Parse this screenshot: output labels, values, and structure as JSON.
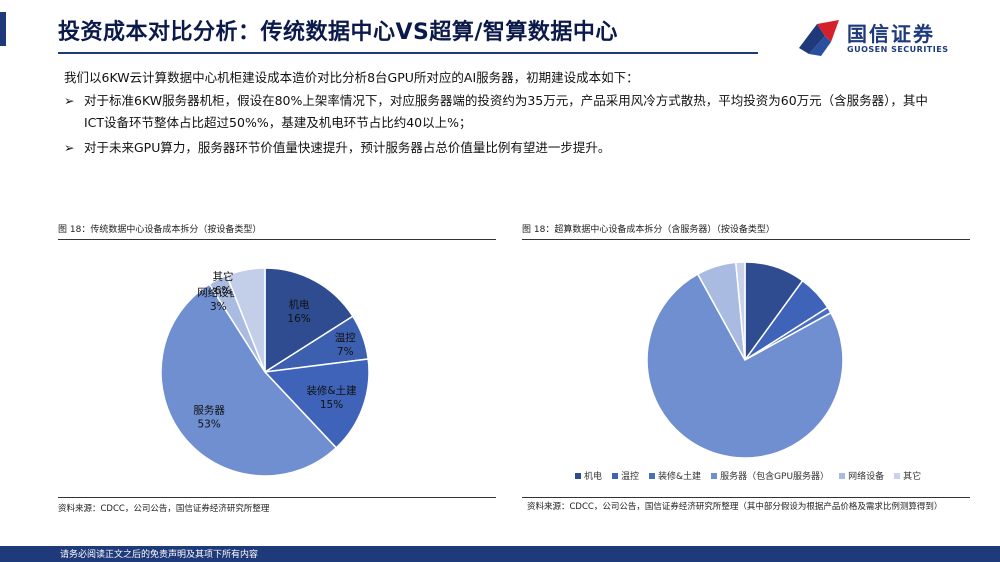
{
  "header": {
    "title": "投资成本对比分析：传统数据中心VS超算/智算数据中心",
    "logo_cn": "国信证券",
    "logo_en": "GUOSEN SECURITIES"
  },
  "intro": "我们以6KW云计算数据中心机柜建设成本造价对比分析8台GPU所对应的AI服务器，初期建设成本如下：",
  "bullets": [
    {
      "arrow": "➢",
      "text": "对于标准6KW服务器机柜，假设在80%上架率情况下，对应服务器端的投资约为35万元，产品采用风冷方式散热，平均投资为60万元（含服务器），其中ICT设备环节整体占比超过50%%，基建及机电环节占比约40以上%；"
    },
    {
      "arrow": "➢",
      "text": "对于未来GPU算力，服务器环节价值量快速提升，预计服务器占总价值量比例有望进一步提升。"
    }
  ],
  "chart_data": [
    {
      "type": "pie",
      "title": "图 18：传统数据中心设备成本拆分（按设备类型）",
      "source": "资料来源：CDCC，公司公告，国信证券经济研究所整理",
      "slices": [
        {
          "name": "机电",
          "value": 16,
          "label": "16%",
          "color": "#2e4c8f"
        },
        {
          "name": "温控",
          "value": 7,
          "label": "7%",
          "color": "#3d5fb0"
        },
        {
          "name": "装修&土建",
          "value": 15,
          "label": "15%",
          "color": "#3e63b8"
        },
        {
          "name": "服务器",
          "value": 53,
          "label": "53%",
          "color": "#6f8fd0"
        },
        {
          "name": "网络设备",
          "value": 3,
          "label": "3%",
          "color": "#a9bbe0"
        },
        {
          "name": "其它",
          "value": 6,
          "label": "6%",
          "color": "#c3cee9"
        }
      ]
    },
    {
      "type": "pie",
      "title": "图 18：超算数据中心设备成本拆分（含服务器）（按设备类型）",
      "source": "资料来源：CDCC，公司公告，国信证券经济研究所整理（其中部分假设为根据产品价格及需求比例测算得到）",
      "legend_position": "bottom",
      "slices": [
        {
          "name": "机电",
          "value": 10,
          "color": "#2e4c8f"
        },
        {
          "name": "温控",
          "value": 6,
          "color": "#3e63b8"
        },
        {
          "name": "装修&土建",
          "value": 1,
          "color": "#4a6dc0"
        },
        {
          "name": "服务器（包含GPU服务器）",
          "value": 75,
          "color": "#6f8fd0"
        },
        {
          "name": "网络设备",
          "value": 6.5,
          "color": "#a9bbe0"
        },
        {
          "name": "其它",
          "value": 1.5,
          "color": "#c9d2ea"
        }
      ]
    }
  ],
  "footer": {
    "disclaimer": "请务必阅读正文之后的免责声明及其项下所有内容"
  }
}
